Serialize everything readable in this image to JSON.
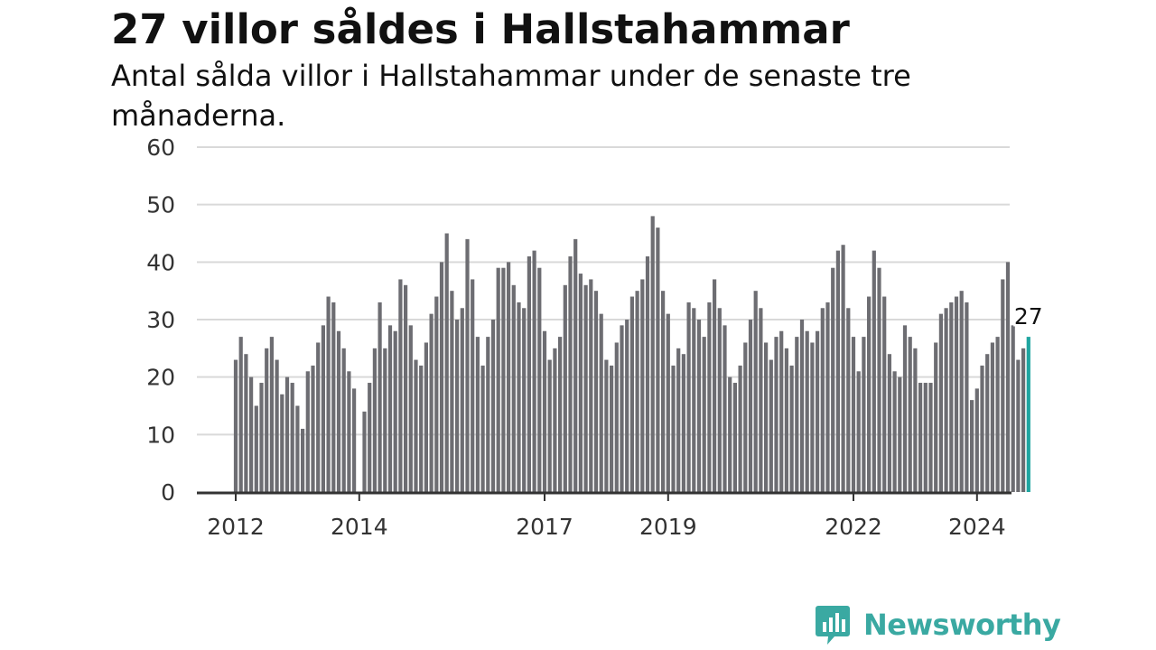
{
  "title": "27 villor såldes i Hallstahammar",
  "subtitle": "Antal sålda villor i Hallstahammar under de senaste tre månaderna.",
  "brand": {
    "name": "Newsworthy",
    "color": "#3aa9a2"
  },
  "colors": {
    "bar": "#6d6d72",
    "highlight": "#1fa5a0",
    "grid": "#d9d9d9",
    "axis": "#333333"
  },
  "chart_data": {
    "type": "bar",
    "x_start": "2012-01",
    "values": [
      23,
      27,
      24,
      20,
      15,
      19,
      25,
      27,
      23,
      17,
      20,
      19,
      15,
      11,
      21,
      22,
      26,
      29,
      34,
      33,
      28,
      25,
      21,
      18,
      null,
      14,
      19,
      25,
      33,
      25,
      29,
      28,
      37,
      36,
      29,
      23,
      22,
      26,
      31,
      34,
      40,
      45,
      35,
      30,
      32,
      44,
      37,
      27,
      22,
      27,
      30,
      39,
      39,
      40,
      36,
      33,
      32,
      41,
      42,
      39,
      28,
      23,
      25,
      27,
      36,
      41,
      44,
      38,
      36,
      37,
      35,
      31,
      23,
      22,
      26,
      29,
      30,
      34,
      35,
      37,
      41,
      48,
      46,
      35,
      31,
      22,
      25,
      24,
      33,
      32,
      30,
      27,
      33,
      37,
      32,
      29,
      20,
      19,
      22,
      26,
      30,
      35,
      32,
      26,
      23,
      27,
      28,
      25,
      22,
      27,
      30,
      28,
      26,
      28,
      32,
      33,
      39,
      42,
      43,
      32,
      27,
      21,
      27,
      34,
      42,
      39,
      34,
      24,
      21,
      20,
      29,
      27,
      25,
      19,
      19,
      19,
      26,
      31,
      32,
      33,
      34,
      35,
      33,
      16,
      18,
      22,
      24,
      26,
      27,
      37,
      40,
      29,
      23,
      25,
      27
    ],
    "highlight_last": true,
    "value_label": "27",
    "ylim": [
      0,
      60
    ],
    "yticks": [
      0,
      10,
      20,
      30,
      40,
      50,
      60
    ],
    "xticks": [
      {
        "label": "2012",
        "x": "2012-01"
      },
      {
        "label": "2014",
        "x": "2014-01"
      },
      {
        "label": "2017",
        "x": "2017-01"
      },
      {
        "label": "2019",
        "x": "2019-01"
      },
      {
        "label": "2022",
        "x": "2022-01"
      },
      {
        "label": "2024",
        "x": "2024-01"
      }
    ],
    "grid": true,
    "xlabel": "",
    "ylabel": ""
  }
}
